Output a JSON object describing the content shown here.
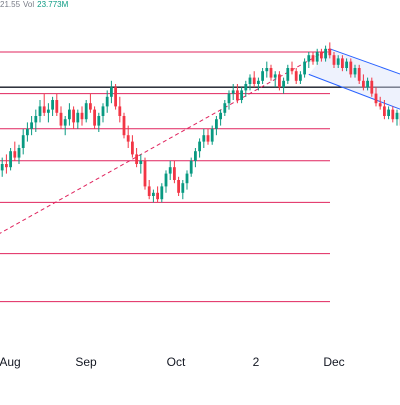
{
  "header": {
    "ohlc_fragment": "21.55",
    "volume_label": "Vol",
    "volume_value": "23.773M"
  },
  "colors": {
    "up": "#089981",
    "down": "#f23645",
    "fib_line": "#e0245e",
    "support_line": "#131722",
    "channel": "#2962ff",
    "channel_fill": "#d9e3fb",
    "axis_text": "#131722"
  },
  "chart_data": {
    "type": "candlestick",
    "title": "",
    "x_axis_labels": [
      "Aug",
      "Sep",
      "Oct",
      "2",
      "Dec"
    ],
    "ylim": [
      0,
      100
    ],
    "y_axis_visible": false,
    "grid": false,
    "horizontal_levels": [
      {
        "role": "fib",
        "value": 90
      },
      {
        "role": "fib",
        "value": 77
      },
      {
        "role": "support",
        "value": 79
      },
      {
        "role": "fib",
        "value": 66
      },
      {
        "role": "fib",
        "value": 56
      },
      {
        "role": "fib",
        "value": 43
      },
      {
        "role": "fib",
        "value": 27
      },
      {
        "role": "fib",
        "value": 12
      }
    ],
    "trendline": {
      "from": {
        "index": 0,
        "value": 33
      },
      "to": {
        "index": 79,
        "value": 91
      }
    },
    "channel": {
      "upper": {
        "from": {
          "index": 79,
          "value": 91
        },
        "to": {
          "index": 96,
          "value": 83
        }
      },
      "lower": {
        "from": {
          "index": 74,
          "value": 83
        },
        "to": {
          "index": 96,
          "value": 72
        }
      }
    },
    "candles": [
      [
        50,
        54,
        47,
        53
      ],
      [
        53,
        57,
        51,
        55
      ],
      [
        55,
        58,
        52,
        54
      ],
      [
        54,
        60,
        53,
        59
      ],
      [
        59,
        62,
        56,
        57
      ],
      [
        57,
        61,
        55,
        60
      ],
      [
        60,
        66,
        58,
        64
      ],
      [
        64,
        68,
        62,
        66
      ],
      [
        66,
        70,
        64,
        68
      ],
      [
        68,
        72,
        65,
        70
      ],
      [
        70,
        75,
        68,
        73
      ],
      [
        73,
        77,
        70,
        71
      ],
      [
        71,
        74,
        68,
        72
      ],
      [
        72,
        76,
        70,
        75
      ],
      [
        75,
        77,
        70,
        71
      ],
      [
        71,
        73,
        66,
        67
      ],
      [
        67,
        70,
        64,
        69
      ],
      [
        69,
        74,
        67,
        72
      ],
      [
        72,
        73,
        66,
        68
      ],
      [
        68,
        72,
        66,
        71
      ],
      [
        71,
        73,
        67,
        69
      ],
      [
        69,
        75,
        68,
        74
      ],
      [
        74,
        77,
        71,
        72
      ],
      [
        72,
        73,
        66,
        67
      ],
      [
        67,
        71,
        65,
        70
      ],
      [
        70,
        74,
        68,
        73
      ],
      [
        73,
        78,
        71,
        76
      ],
      [
        76,
        81,
        74,
        79
      ],
      [
        79,
        80,
        72,
        73
      ],
      [
        73,
        76,
        68,
        70
      ],
      [
        70,
        71,
        63,
        64
      ],
      [
        64,
        67,
        60,
        62
      ],
      [
        62,
        64,
        57,
        58
      ],
      [
        58,
        60,
        54,
        55
      ],
      [
        55,
        58,
        52,
        56
      ],
      [
        56,
        57,
        47,
        48
      ],
      [
        48,
        50,
        44,
        45
      ],
      [
        45,
        47,
        43,
        46
      ],
      [
        46,
        48,
        43,
        44
      ],
      [
        44,
        49,
        43,
        48
      ],
      [
        48,
        53,
        46,
        52
      ],
      [
        52,
        56,
        50,
        54
      ],
      [
        54,
        56,
        49,
        50
      ],
      [
        50,
        51,
        45,
        46
      ],
      [
        46,
        50,
        44,
        49
      ],
      [
        49,
        53,
        47,
        52
      ],
      [
        52,
        57,
        51,
        56
      ],
      [
        56,
        60,
        54,
        59
      ],
      [
        59,
        63,
        57,
        62
      ],
      [
        62,
        66,
        60,
        64
      ],
      [
        64,
        66,
        61,
        62
      ],
      [
        62,
        67,
        61,
        66
      ],
      [
        66,
        70,
        64,
        69
      ],
      [
        69,
        72,
        67,
        71
      ],
      [
        71,
        75,
        70,
        74
      ],
      [
        74,
        78,
        72,
        77
      ],
      [
        77,
        80,
        75,
        78
      ],
      [
        78,
        80,
        74,
        75
      ],
      [
        75,
        79,
        74,
        78
      ],
      [
        78,
        81,
        76,
        80
      ],
      [
        80,
        83,
        78,
        82
      ],
      [
        82,
        84,
        79,
        80
      ],
      [
        80,
        82,
        78,
        81
      ],
      [
        81,
        85,
        80,
        84
      ],
      [
        84,
        87,
        82,
        85
      ],
      [
        85,
        86,
        81,
        82
      ],
      [
        82,
        84,
        79,
        83
      ],
      [
        83,
        84,
        78,
        79
      ],
      [
        79,
        82,
        77,
        81
      ],
      [
        81,
        86,
        80,
        85
      ],
      [
        85,
        87,
        83,
        84
      ],
      [
        84,
        85,
        80,
        81
      ],
      [
        81,
        84,
        80,
        83
      ],
      [
        83,
        88,
        82,
        87
      ],
      [
        87,
        90,
        85,
        89
      ],
      [
        89,
        90,
        86,
        87
      ],
      [
        87,
        91,
        86,
        90
      ],
      [
        90,
        91,
        87,
        88
      ],
      [
        88,
        92,
        87,
        91
      ],
      [
        91,
        93,
        88,
        89
      ],
      [
        89,
        90,
        85,
        86
      ],
      [
        86,
        89,
        85,
        88
      ],
      [
        88,
        89,
        84,
        85
      ],
      [
        85,
        88,
        84,
        87
      ],
      [
        87,
        88,
        82,
        83
      ],
      [
        83,
        86,
        82,
        85
      ],
      [
        85,
        86,
        80,
        81
      ],
      [
        81,
        83,
        78,
        79
      ],
      [
        79,
        82,
        78,
        81
      ],
      [
        81,
        82,
        76,
        77
      ],
      [
        77,
        79,
        73,
        74
      ],
      [
        74,
        76,
        72,
        73
      ],
      [
        73,
        75,
        69,
        70
      ],
      [
        70,
        73,
        69,
        72
      ],
      [
        72,
        73,
        68,
        69
      ],
      [
        69,
        72,
        67,
        71
      ],
      [
        71,
        72,
        66,
        67
      ]
    ]
  }
}
